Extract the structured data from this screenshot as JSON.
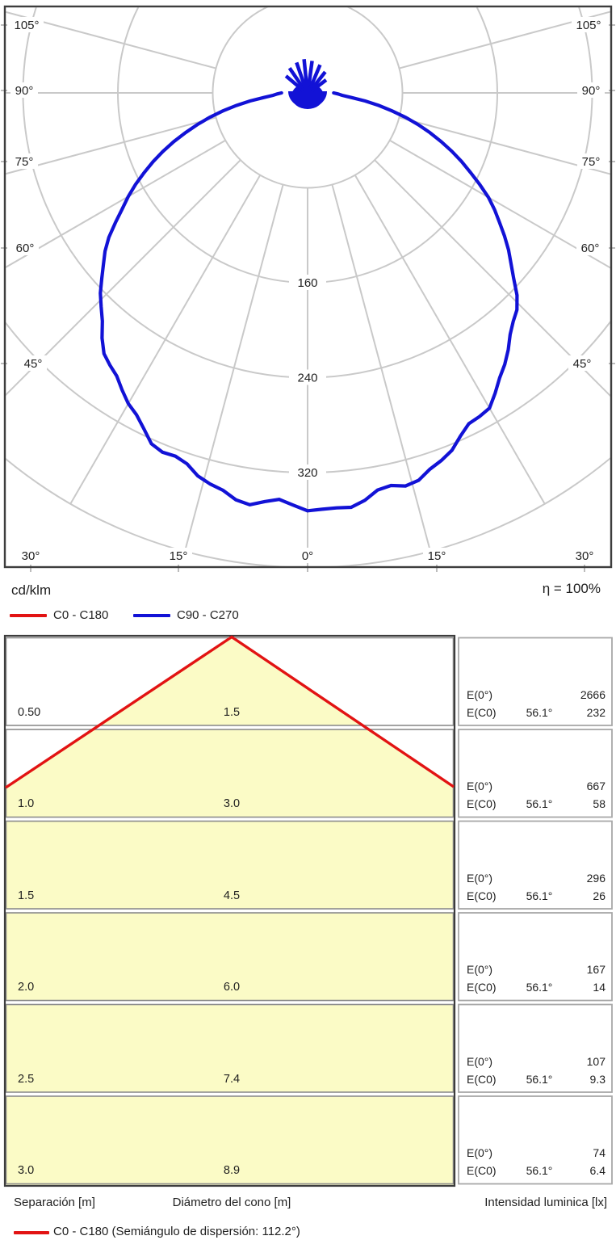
{
  "colors": {
    "red": "#e21313",
    "blue": "#1212d6",
    "grid": "#c9c9c9",
    "yellow": "#fbfbc6",
    "border_dark": "#3d3d3d",
    "border_mid": "#8c8c8c",
    "border_light": "#a8a8a8",
    "text": "#1f1f1f"
  },
  "polar_chart": {
    "unit_label": "cd/klm",
    "efficiency_label": "η = 100%",
    "legend": [
      {
        "label": "C0 - C180",
        "color_key": "red"
      },
      {
        "label": "C90 - C270",
        "color_key": "blue"
      }
    ],
    "radial_tick_labels": [
      "160",
      "240",
      "320"
    ],
    "angle_labels_left": [
      "105°",
      "90°",
      "75°",
      "60°",
      "45°"
    ],
    "angle_labels_bottom": [
      "30°",
      "15°",
      "0°",
      "15°",
      "30°"
    ],
    "angle_labels_right": [
      "45°",
      "60°",
      "75°",
      "90°",
      "105°"
    ]
  },
  "cone_table": {
    "rows": [
      {
        "separation": "0.50",
        "diameter": "1.5",
        "e0_label": "E(0°)",
        "e0_value": "2666",
        "ec0_label": "E(C0)",
        "ec0_angle": "56.1°",
        "ec0_value": "232"
      },
      {
        "separation": "1.0",
        "diameter": "3.0",
        "e0_label": "E(0°)",
        "e0_value": "667",
        "ec0_label": "E(C0)",
        "ec0_angle": "56.1°",
        "ec0_value": "58"
      },
      {
        "separation": "1.5",
        "diameter": "4.5",
        "e0_label": "E(0°)",
        "e0_value": "296",
        "ec0_label": "E(C0)",
        "ec0_angle": "56.1°",
        "ec0_value": "26"
      },
      {
        "separation": "2.0",
        "diameter": "6.0",
        "e0_label": "E(0°)",
        "e0_value": "167",
        "ec0_label": "E(C0)",
        "ec0_angle": "56.1°",
        "ec0_value": "14"
      },
      {
        "separation": "2.5",
        "diameter": "7.4",
        "e0_label": "E(0°)",
        "e0_value": "107",
        "ec0_label": "E(C0)",
        "ec0_angle": "56.1°",
        "ec0_value": "9.3"
      },
      {
        "separation": "3.0",
        "diameter": "8.9",
        "e0_label": "E(0°)",
        "e0_value": "74",
        "ec0_label": "E(C0)",
        "ec0_angle": "56.1°",
        "ec0_value": "6.4"
      }
    ],
    "footer": {
      "separation": "Separación [m]",
      "diameter": "Diámetro del cono [m]",
      "intensity": "Intensidad luminica [lx]"
    },
    "legend_label": "C0 - C180 (Semiángulo de dispersión: 112.2°)"
  },
  "chart_data": [
    {
      "type": "line",
      "subtype": "polar_intensity_distribution",
      "title": "Curva de distribución luminosa",
      "units": "cd/klm",
      "efficiency": "η = 100%",
      "angle_ticks_deg": [
        0,
        15,
        30,
        45,
        60,
        75,
        90,
        105
      ],
      "radial_gridlines": [
        80,
        160,
        240,
        320,
        400
      ],
      "radial_tick_labels": [
        160,
        240,
        320
      ],
      "symmetric": true,
      "max_value_cd_per_klm": 350,
      "series": [
        {
          "name": "C0 - C180",
          "color": "#e21313",
          "angles_deg": [
            0,
            5,
            10,
            15,
            20,
            25,
            30,
            35,
            40,
            45,
            50,
            55,
            60,
            65,
            70,
            75,
            80,
            85,
            90
          ],
          "values": [
            350,
            349,
            345,
            338,
            329,
            317,
            303,
            287,
            268,
            248,
            225,
            201,
            175,
            148,
            120,
            91,
            61,
            31,
            22
          ]
        },
        {
          "name": "C90 - C270",
          "color": "#1212d6",
          "angles_deg": [
            0,
            5,
            10,
            15,
            20,
            25,
            30,
            35,
            40,
            45,
            50,
            55,
            60,
            65,
            70,
            75,
            80,
            85,
            90
          ],
          "values": [
            350,
            349,
            345,
            338,
            329,
            317,
            303,
            287,
            268,
            248,
            225,
            201,
            175,
            148,
            120,
            91,
            61,
            31,
            22
          ]
        }
      ]
    },
    {
      "type": "table",
      "title": "Diagrama de conos",
      "columns": [
        "Separación [m]",
        "Diámetro del cono [m]",
        "Intensidad luminica [lx]"
      ],
      "rows": [
        {
          "separacion_m": 0.5,
          "diametro_cono_m": 1.5,
          "E0_lx": 2666,
          "EC0_lx": 232,
          "semiangulo": "56.1°"
        },
        {
          "separacion_m": 1.0,
          "diametro_cono_m": 3.0,
          "E0_lx": 667,
          "EC0_lx": 58,
          "semiangulo": "56.1°"
        },
        {
          "separacion_m": 1.5,
          "diametro_cono_m": 4.5,
          "E0_lx": 296,
          "EC0_lx": 26,
          "semiangulo": "56.1°"
        },
        {
          "separacion_m": 2.0,
          "diametro_cono_m": 6.0,
          "E0_lx": 167,
          "EC0_lx": 14,
          "semiangulo": "56.1°"
        },
        {
          "separacion_m": 2.5,
          "diametro_cono_m": 7.4,
          "E0_lx": 107,
          "EC0_lx": 9.3,
          "semiangulo": "56.1°"
        },
        {
          "separacion_m": 3.0,
          "diametro_cono_m": 8.9,
          "E0_lx": 74,
          "EC0_lx": 6.4,
          "semiangulo": "56.1°"
        }
      ],
      "legend": "C0 - C180 (Semiángulo de dispersión: 112.2°)"
    }
  ]
}
